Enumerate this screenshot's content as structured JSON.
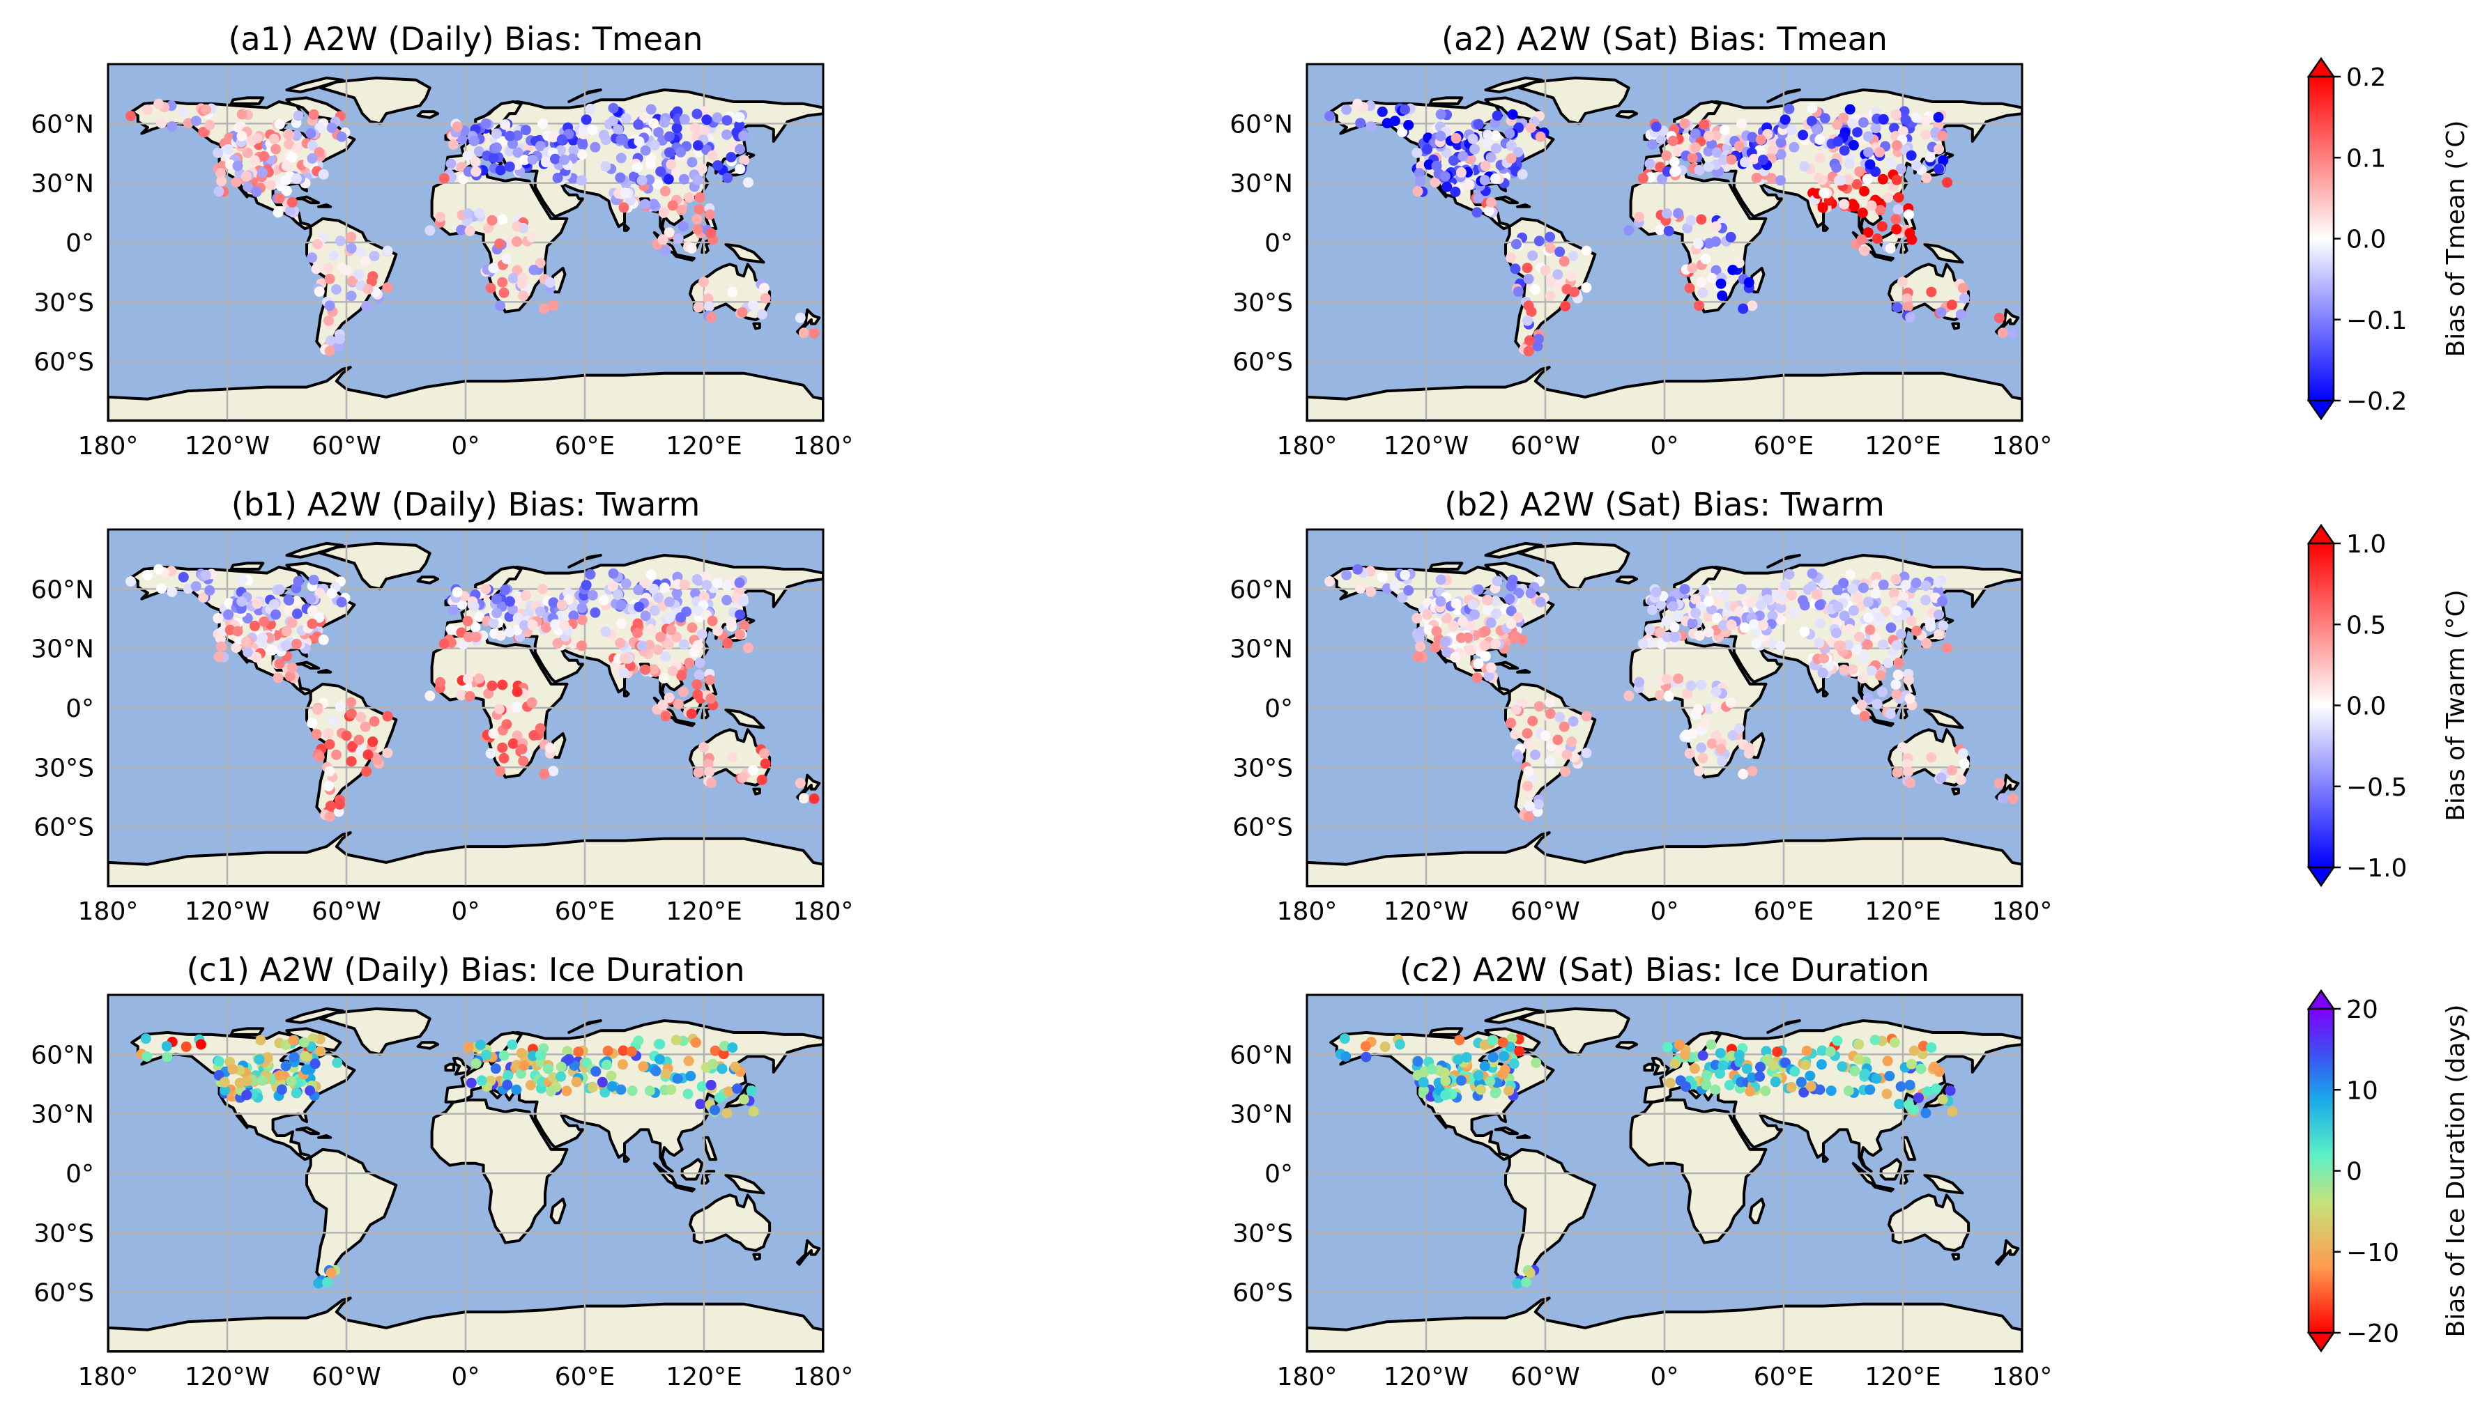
{
  "maps": [
    {
      "id": "a1",
      "title": "(a1) A2W (Daily) Bias: Tmean",
      "variable": "Tmean",
      "colorbar": 0,
      "product": "Daily"
    },
    {
      "id": "a2",
      "title": "(a2) A2W (Sat) Bias: Tmean",
      "variable": "Tmean",
      "colorbar": 0,
      "product": "Sat"
    },
    {
      "id": "b1",
      "title": "(b1) A2W (Daily) Bias: Twarm",
      "variable": "Twarm",
      "colorbar": 1,
      "product": "Daily"
    },
    {
      "id": "b2",
      "title": "(b2) A2W (Sat) Bias: Twarm",
      "variable": "Twarm",
      "colorbar": 1,
      "product": "Sat"
    },
    {
      "id": "c1",
      "title": "(c1) A2W (Daily) Bias: Ice Duration",
      "variable": "Ice Duration",
      "colorbar": 2,
      "product": "Daily"
    },
    {
      "id": "c2",
      "title": "(c2) A2W (Sat) Bias: Ice Duration",
      "variable": "Ice Duration",
      "colorbar": 2,
      "product": "Sat"
    }
  ],
  "lat_ticks": [
    "60°N",
    "30°N",
    "0°",
    "30°S",
    "60°S"
  ],
  "lon_ticks": [
    "180°",
    "120°W",
    "60°W",
    "0°",
    "60°E",
    "120°E",
    "180°"
  ],
  "colorbars": [
    {
      "label": "Bias of Tmean (°C)",
      "cmap": "bwr",
      "min": -0.2,
      "max": 0.2,
      "ticks": [
        "0.2",
        "0.1",
        "0.0",
        "−0.1",
        "−0.2"
      ],
      "extend": "both"
    },
    {
      "label": "Bias of Twarm (°C)",
      "cmap": "bwr",
      "min": -1.0,
      "max": 1.0,
      "ticks": [
        "1.0",
        "0.5",
        "0.0",
        "−0.5",
        "−1.0"
      ],
      "extend": "both"
    },
    {
      "label": "Bias of Ice Duration (days)",
      "cmap": "rainbow_r",
      "min": -20,
      "max": 20,
      "ticks": [
        "20",
        "10",
        "0",
        "−10",
        "−20"
      ],
      "extend": "both"
    }
  ],
  "colors": {
    "ocean": "#97b6e1",
    "land": "#efefdb",
    "coastline": "#000000",
    "gridline": "#b3b3b3"
  }
}
